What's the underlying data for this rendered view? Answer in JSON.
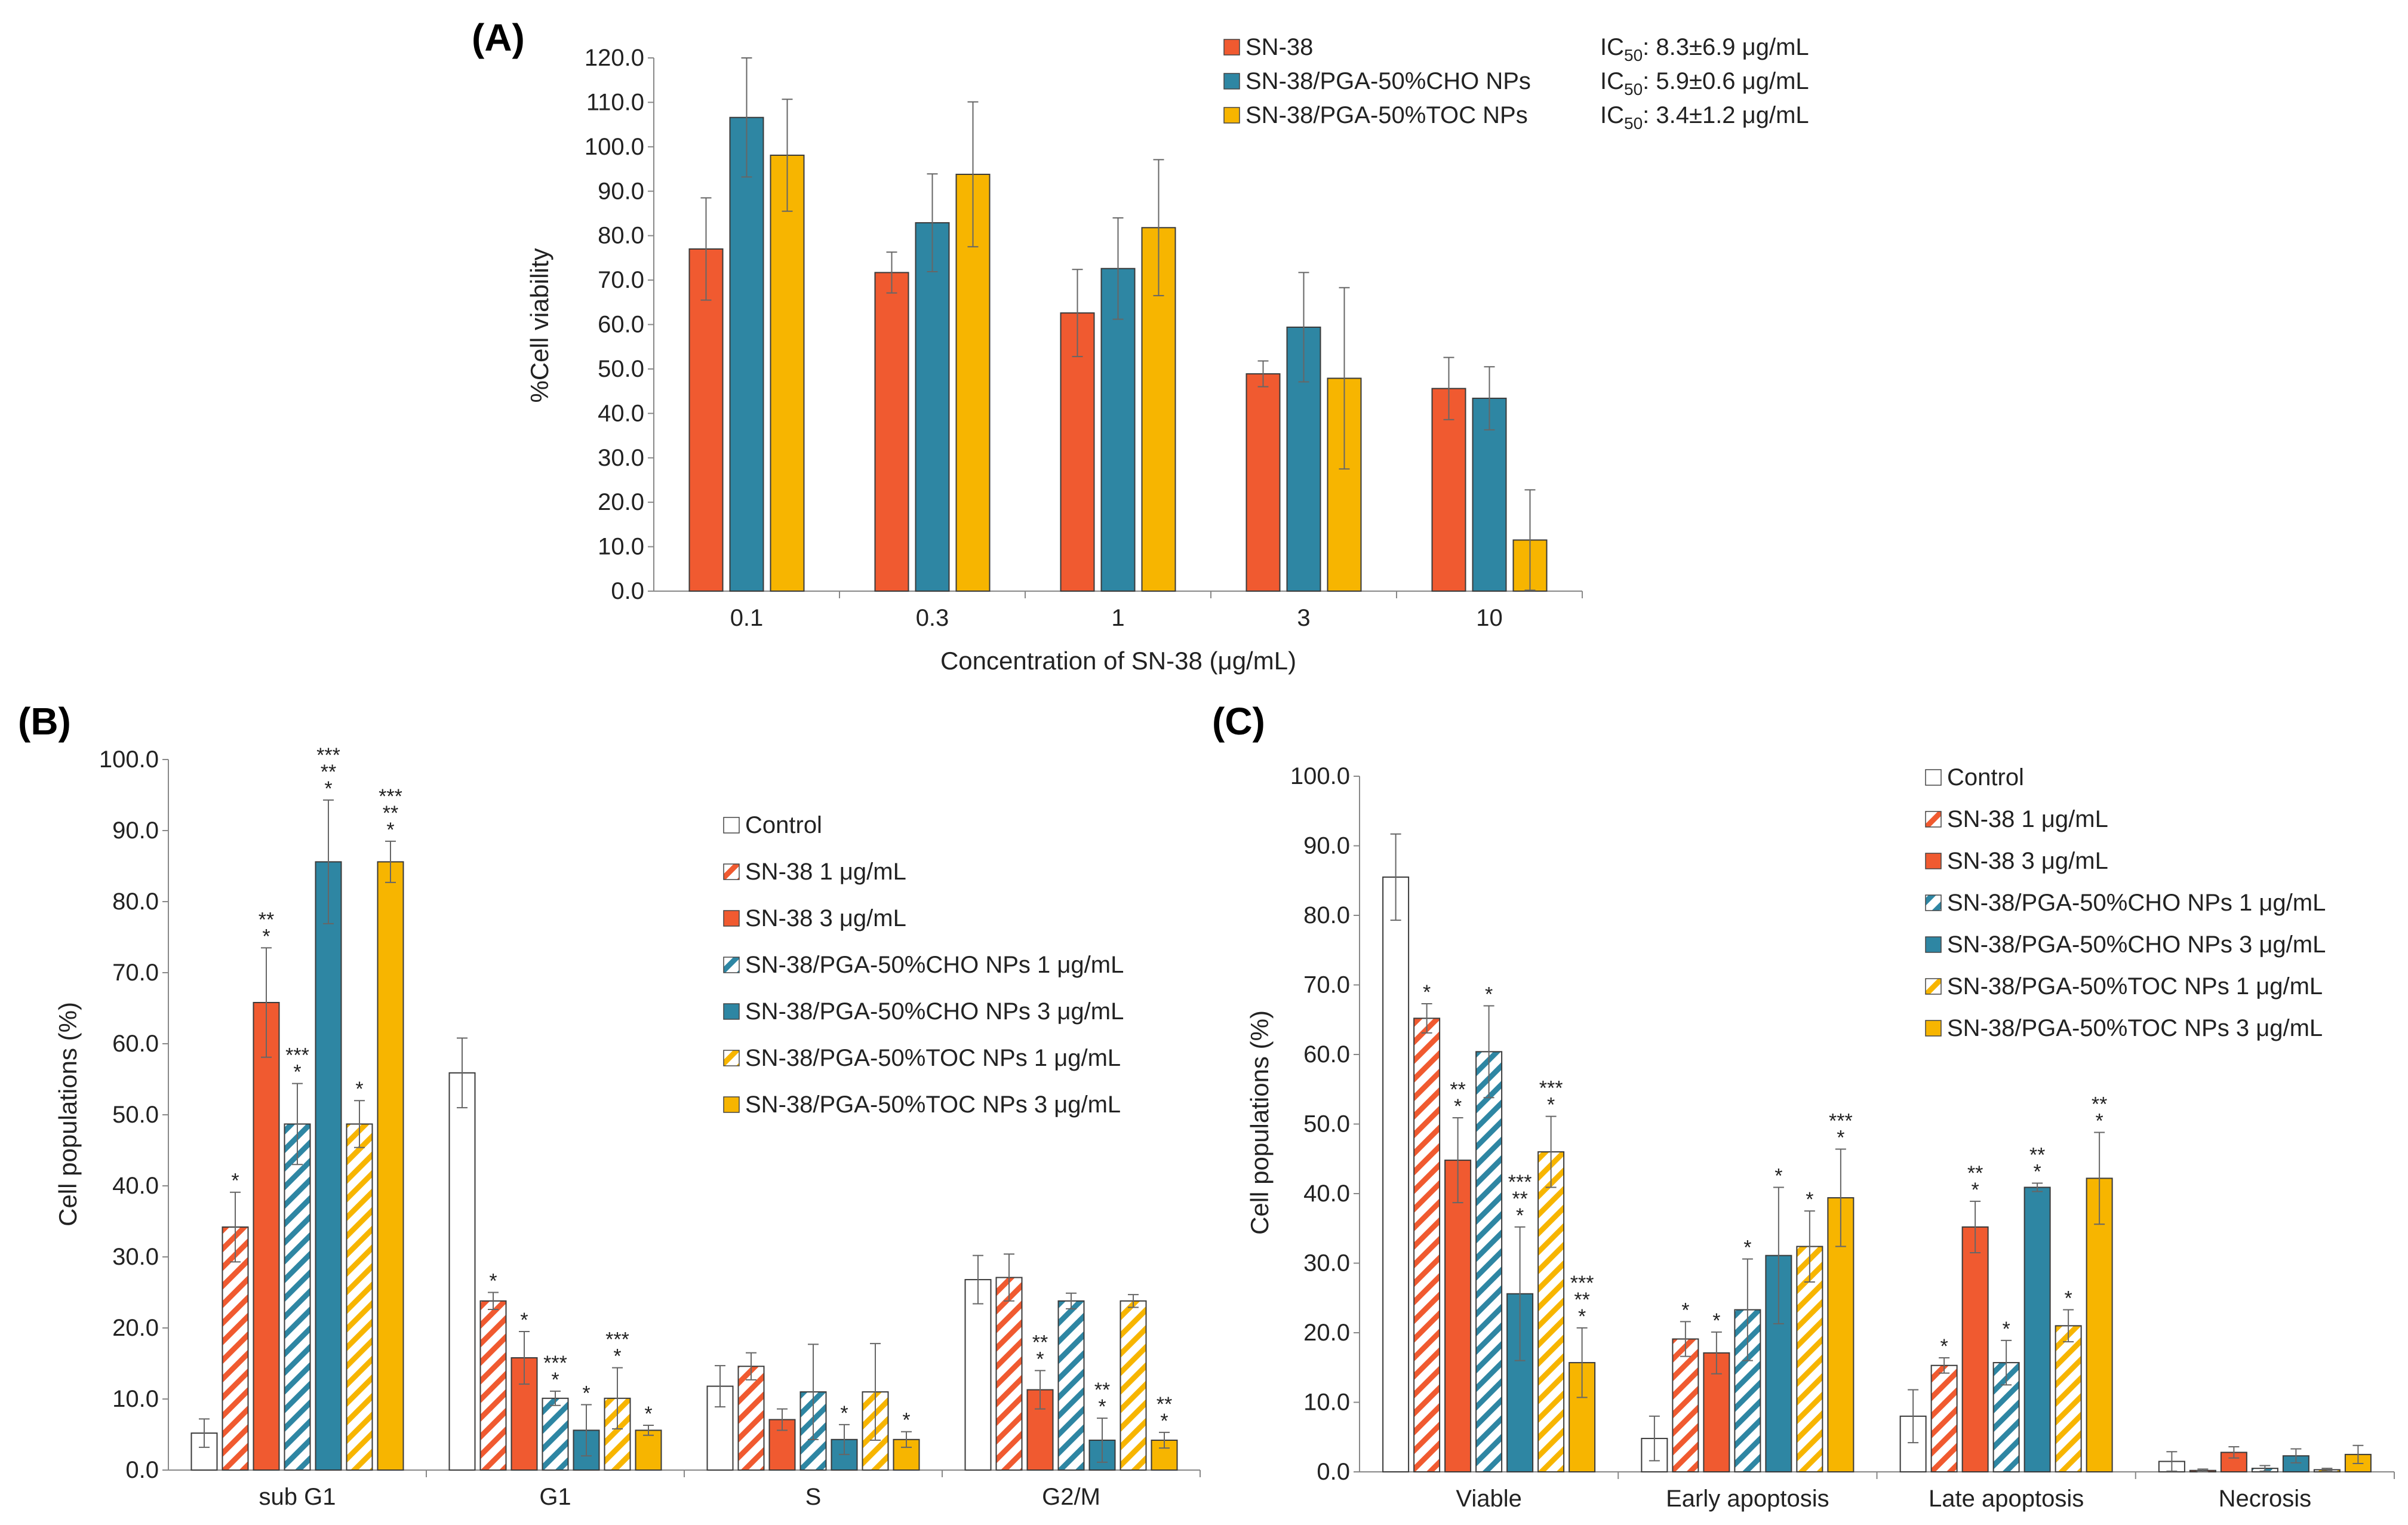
{
  "colors": {
    "red": "#f05a30",
    "blue": "#2e86a3",
    "yellow": "#f7b500",
    "control": "#ffffff",
    "axis": "#888888",
    "errorbar": "#666666",
    "text": "#222222"
  },
  "chart_data": [
    {
      "id": "A",
      "panel_label": "(A)",
      "type": "bar",
      "title": "",
      "xlabel": "Concentration of SN-38 (μg/mL)",
      "ylabel": "%Cell viability",
      "ylim": [
        0,
        120
      ],
      "ytick_step": 10,
      "ytick_decimals": 1,
      "categories": [
        "0.1",
        "0.3",
        "1",
        "3",
        "10"
      ],
      "series": [
        {
          "name": "SN-38",
          "color": "#f05a30",
          "pattern": "solid",
          "values": [
            77.0,
            71.7,
            62.6,
            48.9,
            45.6
          ],
          "errors": [
            11.5,
            4.6,
            9.8,
            2.9,
            7.0
          ],
          "stars": [
            "",
            "",
            "",
            "",
            ""
          ]
        },
        {
          "name": "SN-38/PGA-50%CHO NPs",
          "color": "#2e86a3",
          "pattern": "solid",
          "values": [
            106.6,
            82.9,
            72.6,
            59.4,
            43.4
          ],
          "errors": [
            13.4,
            11.0,
            11.4,
            12.3,
            7.1
          ],
          "stars": [
            "",
            "",
            "",
            "",
            ""
          ]
        },
        {
          "name": "SN-38/PGA-50%TOC NPs",
          "color": "#f7b500",
          "pattern": "solid",
          "values": [
            98.1,
            93.8,
            81.8,
            47.9,
            11.5
          ],
          "errors": [
            12.6,
            16.3,
            15.3,
            20.4,
            11.3
          ],
          "stars": [
            "",
            "",
            "",
            "",
            ""
          ]
        }
      ],
      "ic50": [
        {
          "prefix": "IC",
          "sub": "50",
          "value": ": 8.3±6.9 μg/mL"
        },
        {
          "prefix": "IC",
          "sub": "50",
          "value": ": 5.9±0.6 μg/mL"
        },
        {
          "prefix": "IC",
          "sub": "50",
          "value": ": 3.4±1.2 μg/mL"
        }
      ]
    },
    {
      "id": "B",
      "panel_label": "(B)",
      "type": "bar",
      "title": "",
      "xlabel": "",
      "ylabel": "Cell populations (%)",
      "ylim": [
        0,
        100
      ],
      "ytick_step": 10,
      "ytick_decimals": 1,
      "categories": [
        "sub G1",
        "G1",
        "S",
        "G2/M"
      ],
      "series": [
        {
          "name": "Control",
          "color": "#ffffff",
          "pattern": "solid",
          "values": [
            5.2,
            55.9,
            11.8,
            26.8
          ],
          "errors": [
            2.0,
            4.9,
            2.9,
            3.4
          ],
          "stars": [
            "",
            "",
            "",
            ""
          ]
        },
        {
          "name": "SN-38 1 μg/mL",
          "color": "#f05a30",
          "pattern": "hatch",
          "values": [
            34.2,
            23.8,
            14.6,
            27.1
          ],
          "errors": [
            4.9,
            1.2,
            1.9,
            3.3
          ],
          "stars": [
            "*",
            "*",
            "",
            ""
          ]
        },
        {
          "name": "SN-38 3 μg/mL",
          "color": "#f05a30",
          "pattern": "solid",
          "values": [
            65.8,
            15.8,
            7.1,
            11.3
          ],
          "errors": [
            7.7,
            3.7,
            1.5,
            2.7
          ],
          "stars": [
            "**\n*",
            "*",
            "",
            "**\n*"
          ]
        },
        {
          "name": "SN-38/PGA-50%CHO NPs 1 μg/mL",
          "color": "#2e86a3",
          "pattern": "hatch",
          "values": [
            48.7,
            10.1,
            11.0,
            23.8
          ],
          "errors": [
            5.7,
            1.0,
            6.7,
            1.1
          ],
          "stars": [
            "***\n*",
            "***\n*",
            "",
            ""
          ]
        },
        {
          "name": "SN-38/PGA-50%CHO NPs 3 μg/mL",
          "color": "#2e86a3",
          "pattern": "solid",
          "values": [
            85.6,
            5.6,
            4.3,
            4.2
          ],
          "errors": [
            8.7,
            3.6,
            2.1,
            3.1
          ],
          "stars": [
            "***\n**\n*",
            "*",
            "*",
            "**\n*"
          ]
        },
        {
          "name": "SN-38/PGA-50%TOC NPs 1 μg/mL",
          "color": "#f7b500",
          "pattern": "hatch",
          "values": [
            48.7,
            10.1,
            11.0,
            23.8
          ],
          "errors": [
            3.3,
            4.3,
            6.8,
            0.9
          ],
          "stars": [
            "*",
            "***\n*",
            "",
            ""
          ]
        },
        {
          "name": "SN-38/PGA-50%TOC NPs 3 μg/mL",
          "color": "#f7b500",
          "pattern": "solid",
          "values": [
            85.6,
            5.6,
            4.3,
            4.2
          ],
          "errors": [
            2.9,
            0.7,
            1.1,
            1.1
          ],
          "stars": [
            "***\n**\n*",
            "*",
            "*",
            "**\n*"
          ]
        }
      ]
    },
    {
      "id": "C",
      "panel_label": "(C)",
      "type": "bar",
      "title": "",
      "xlabel": "",
      "ylabel": "Cell populations (%)",
      "ylim": [
        0,
        100
      ],
      "ytick_step": 10,
      "ytick_decimals": 1,
      "categories": [
        "Viable",
        "Early apoptosis",
        "Late apoptosis",
        "Necrosis"
      ],
      "series": [
        {
          "name": "Control",
          "color": "#ffffff",
          "pattern": "solid",
          "values": [
            85.5,
            4.8,
            8.0,
            1.5
          ],
          "errors": [
            6.2,
            3.2,
            3.8,
            1.4
          ],
          "stars": [
            "",
            "",
            "",
            ""
          ]
        },
        {
          "name": "SN-38 1 μg/mL",
          "color": "#f05a30",
          "pattern": "hatch",
          "values": [
            65.2,
            19.1,
            15.3,
            0.2
          ],
          "errors": [
            2.1,
            2.5,
            1.1,
            0.2
          ],
          "stars": [
            "*",
            "*",
            "*",
            ""
          ]
        },
        {
          "name": "SN-38 3 μg/mL",
          "color": "#f05a30",
          "pattern": "solid",
          "values": [
            44.8,
            17.1,
            35.2,
            2.8
          ],
          "errors": [
            6.1,
            3.0,
            3.7,
            0.8
          ],
          "stars": [
            "**\n*",
            "*",
            "**\n*",
            ""
          ]
        },
        {
          "name": "SN-38/PGA-50%CHO NPs 1 μg/mL",
          "color": "#2e86a3",
          "pattern": "hatch",
          "values": [
            60.4,
            23.3,
            15.7,
            0.5
          ],
          "errors": [
            6.6,
            7.3,
            3.2,
            0.4
          ],
          "stars": [
            "*",
            "*",
            "*",
            ""
          ]
        },
        {
          "name": "SN-38/PGA-50%CHO NPs 3 μg/mL",
          "color": "#2e86a3",
          "pattern": "solid",
          "values": [
            25.6,
            31.1,
            40.9,
            2.3
          ],
          "errors": [
            9.6,
            9.8,
            0.6,
            1.0
          ],
          "stars": [
            "***\n**\n*",
            "*",
            "**\n*",
            ""
          ]
        },
        {
          "name": "SN-38/PGA-50%TOC NPs 1 μg/mL",
          "color": "#f7b500",
          "pattern": "hatch",
          "values": [
            46.0,
            32.4,
            21.0,
            0.3
          ],
          "errors": [
            5.1,
            5.1,
            2.3,
            0.2
          ],
          "stars": [
            "***\n*",
            "*",
            "*",
            ""
          ]
        },
        {
          "name": "SN-38/PGA-50%TOC NPs 3 μg/mL",
          "color": "#f7b500",
          "pattern": "solid",
          "values": [
            15.7,
            39.4,
            42.2,
            2.5
          ],
          "errors": [
            5.0,
            7.0,
            6.6,
            1.3
          ],
          "stars": [
            "***\n**\n*",
            "***\n*",
            "**\n*",
            ""
          ]
        }
      ]
    }
  ]
}
